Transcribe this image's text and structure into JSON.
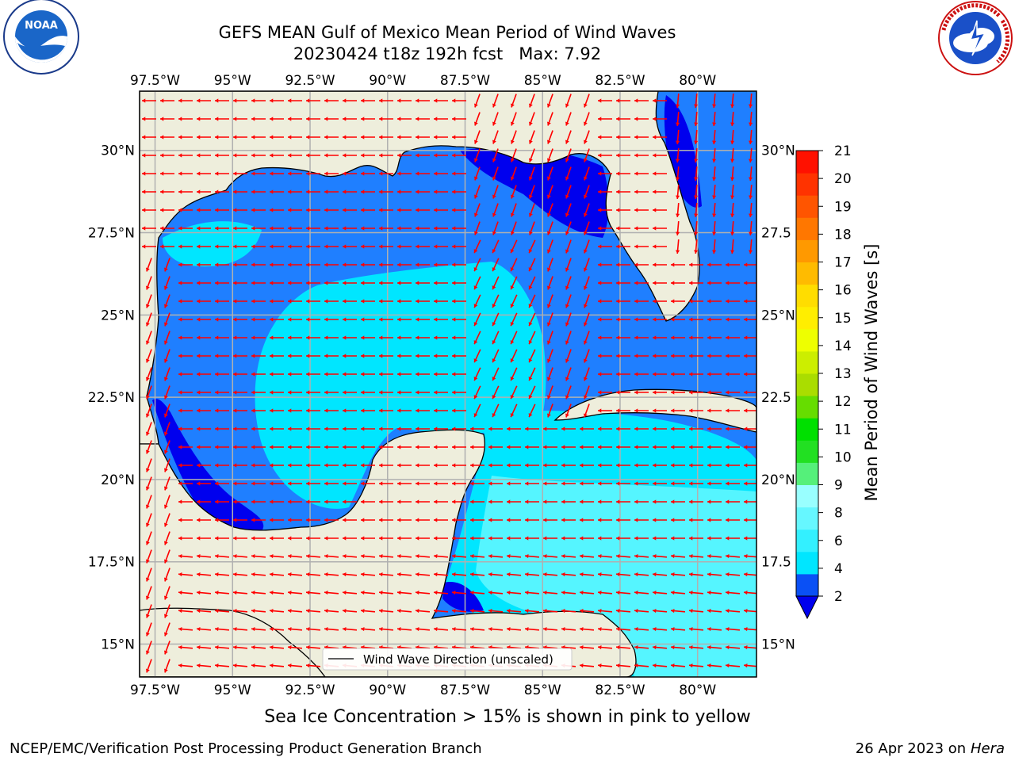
{
  "header": {
    "title_line1": "GEFS MEAN Gulf of Mexico Mean Period of Wind Waves",
    "title_line2": "20230424 t18z 192h fcst   Max: 7.92"
  },
  "logos": {
    "left": {
      "name": "NOAA",
      "text": "NOAA",
      "ring_text": "NATIONAL OCEANIC AND ATMOSPHERIC ADMINISTRATION · U.S. DEPARTMENT OF COMMERCE"
    },
    "right": {
      "name": "National Weather Service",
      "ring_text": "NATIONAL WEATHER SERVICE"
    }
  },
  "chart_data": {
    "type": "heatmap",
    "subtype": "filled-contour map with direction vectors",
    "region": "Gulf of Mexico",
    "variable": "Mean Period of Wind Waves",
    "max": 7.92,
    "x_ticks": [
      "97.5°W",
      "95°W",
      "92.5°W",
      "90°W",
      "87.5°W",
      "85°W",
      "82.5°W",
      "80°W"
    ],
    "x_tick_values": [
      -97.5,
      -95,
      -92.5,
      -90,
      -87.5,
      -85,
      -82.5,
      -80
    ],
    "y_ticks_left": [
      "30°N",
      "27.5°N",
      "25°N",
      "22.5°N",
      "20°N",
      "17.5°N",
      "15°N"
    ],
    "y_ticks_right": [
      "30°N",
      "27.5",
      "25°N",
      "22.5",
      "20°N",
      "17.5",
      "15°N"
    ],
    "y_tick_values": [
      30,
      27.5,
      25,
      22.5,
      20,
      17.5,
      15
    ],
    "xlim": [
      -98,
      -78.1
    ],
    "ylim": [
      14,
      31.8
    ],
    "grid": true,
    "colorbar": {
      "label": "Mean Period of Wind Waves [s]",
      "ticks": [
        "2",
        "4",
        "6",
        "8",
        "9",
        "10",
        "11",
        "12",
        "13",
        "14",
        "15",
        "16",
        "17",
        "18",
        "19",
        "20",
        "21"
      ],
      "colors": [
        "#0a50f5",
        "#00e6ff",
        "#33f0ff",
        "#66f7ff",
        "#99ffff",
        "#55f07a",
        "#22e022",
        "#00e000",
        "#66dd00",
        "#aadd00",
        "#ccee00",
        "#eeff00",
        "#ffee00",
        "#ffdd00",
        "#ffbb00",
        "#ff9900",
        "#ff7700",
        "#ff5500",
        "#ff3300",
        "#ff1100"
      ],
      "extend_min_color": "#0000ee",
      "legend_position": "right"
    },
    "colors": {
      "land": "#eeeedc",
      "ocean_low": "#0000ee",
      "period_2_4": "#1f7fff",
      "period_4_6": "#00e6ff",
      "period_6_8": "#55f5ff",
      "arrows": "#ff0000",
      "grid": "#b0b0b0"
    },
    "legend": {
      "entry": "Wind Wave Direction (unscaled)",
      "position": "lower-center"
    }
  },
  "footer": {
    "note": "Sea Ice Concentration > 15% is shown in pink to yellow",
    "credit": "NCEP/EMC/Verification Post Processing Product Generation Branch",
    "date": "26 Apr 2023 on ",
    "host": "Hera"
  }
}
